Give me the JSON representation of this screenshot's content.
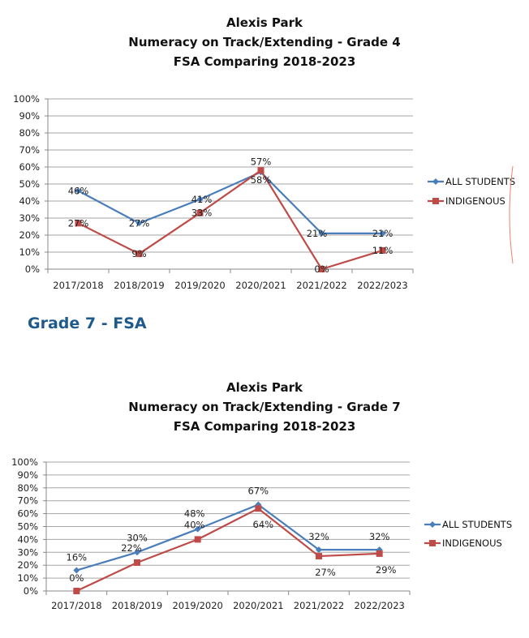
{
  "section_heading": "Grade 7 - FSA",
  "colors": {
    "all_students": "#4a7ebb",
    "indigenous": "#be4b48",
    "grid": "#a6a6a6",
    "heading": "#1f5a8c",
    "annotation": "#f08070"
  },
  "chart_data": [
    {
      "type": "line",
      "title": [
        "Alexis Park",
        "Numeracy on Track/Extending - Grade 4",
        "FSA Comparing 2018-2023"
      ],
      "categories": [
        "2017/2018",
        "2018/2019",
        "2019/2020",
        "2020/2021",
        "2021/2022",
        "2022/2023"
      ],
      "y_ticks": [
        "0%",
        "10%",
        "20%",
        "30%",
        "40%",
        "50%",
        "60%",
        "70%",
        "80%",
        "90%",
        "100%"
      ],
      "ylim": [
        0,
        100
      ],
      "grid": true,
      "legend_position": "right",
      "series": [
        {
          "name": "ALL STUDENTS",
          "values": [
            46,
            27,
            41,
            57,
            21,
            21
          ],
          "labels": [
            "46%",
            "27%",
            "41%",
            "57%",
            "21%",
            "21%"
          ],
          "marker": "diamond"
        },
        {
          "name": "INDIGENOUS",
          "values": [
            27,
            9,
            33,
            58,
            0,
            11
          ],
          "labels": [
            "27%",
            "9%",
            "33%",
            "58%",
            "0%",
            "11%"
          ],
          "marker": "square"
        }
      ]
    },
    {
      "type": "line",
      "title": [
        "Alexis Park",
        "Numeracy on Track/Extending - Grade 7",
        "FSA Comparing 2018-2023"
      ],
      "categories": [
        "2017/2018",
        "2018/2019",
        "2019/2020",
        "2020/2021",
        "2021/2022",
        "2022/2023"
      ],
      "y_ticks": [
        "0%",
        "10%",
        "20%",
        "30%",
        "40%",
        "50%",
        "60%",
        "70%",
        "80%",
        "90%",
        "100%"
      ],
      "ylim": [
        0,
        100
      ],
      "grid": true,
      "legend_position": "right",
      "series": [
        {
          "name": "ALL STUDENTS",
          "values": [
            16,
            30,
            48,
            67,
            32,
            32
          ],
          "labels": [
            "16%",
            "30%",
            "48%",
            "67%",
            "32%",
            "32%"
          ],
          "marker": "diamond"
        },
        {
          "name": "INDIGENOUS",
          "values": [
            0,
            22,
            40,
            64,
            27,
            29
          ],
          "labels": [
            "0%",
            "22%",
            "40%",
            "64%",
            "27%",
            "29%"
          ],
          "marker": "square"
        }
      ]
    }
  ]
}
